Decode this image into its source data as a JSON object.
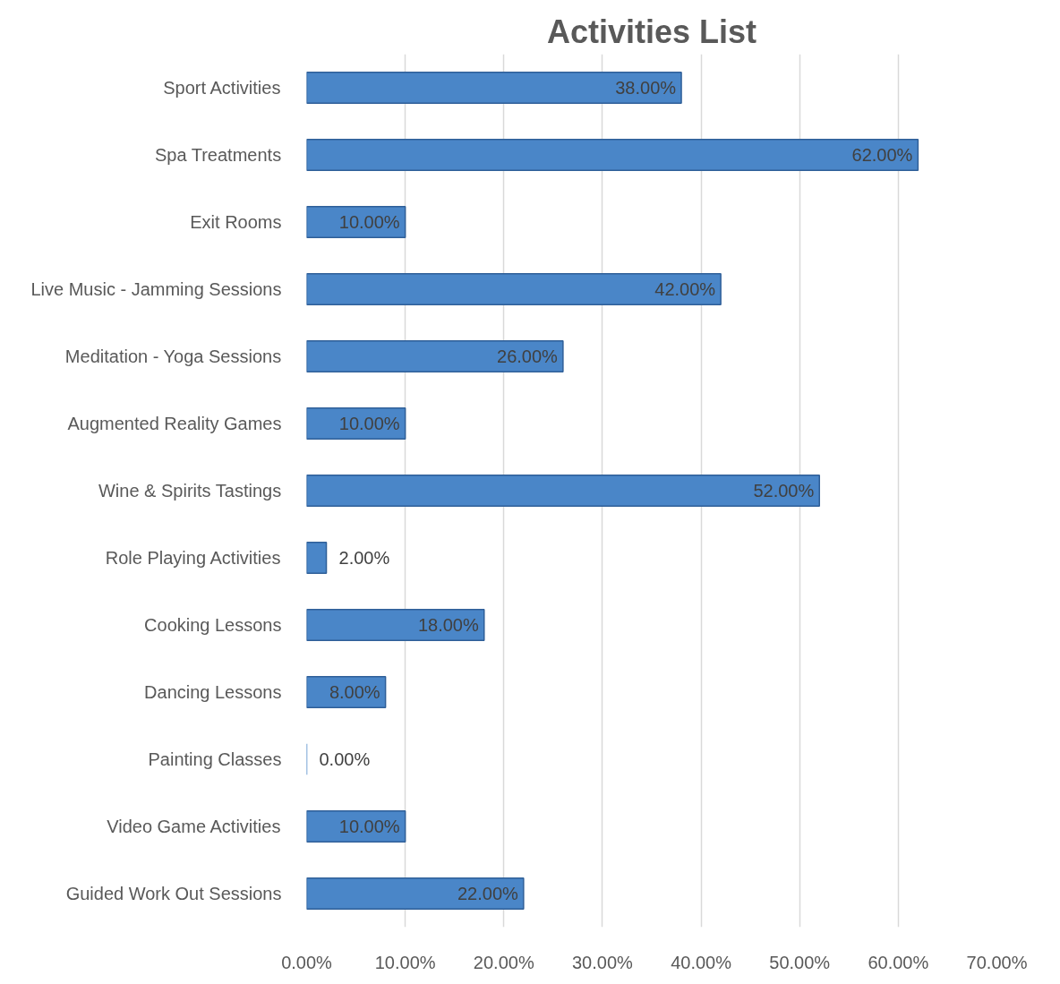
{
  "chart_data": {
    "type": "bar",
    "orientation": "horizontal",
    "title": "Activities List",
    "categories": [
      "Sport Activities",
      "Spa Treatments",
      "Exit Rooms",
      "Live Music - Jamming Sessions",
      "Meditation - Yoga Sessions",
      "Augmented Reality Games",
      "Wine & Spirits Tastings",
      "Role Playing Activities",
      "Cooking Lessons",
      "Dancing Lessons",
      "Painting Classes",
      "Video Game Activities",
      "Guided Work Out Sessions"
    ],
    "values": [
      38,
      62,
      10,
      42,
      26,
      10,
      52,
      2,
      18,
      8,
      0,
      10,
      22
    ],
    "value_labels": [
      "38.00%",
      "62.00%",
      "10.00%",
      "42.00%",
      "26.00%",
      "10.00%",
      "52.00%",
      "2.00%",
      "18.00%",
      "8.00%",
      "0.00%",
      "10.00%",
      "22.00%"
    ],
    "color": "#4a86c8",
    "xlim": [
      0,
      70
    ],
    "xticks": [
      {
        "value": 0,
        "label": "0.00%"
      },
      {
        "value": 10,
        "label": "10.00%"
      },
      {
        "value": 20,
        "label": "20.00%"
      },
      {
        "value": 30,
        "label": "30.00%"
      },
      {
        "value": 40,
        "label": "40.00%"
      },
      {
        "value": 50,
        "label": "50.00%"
      },
      {
        "value": 60,
        "label": "60.00%"
      },
      {
        "value": 70,
        "label": "70.00%"
      }
    ],
    "grid": "x"
  }
}
